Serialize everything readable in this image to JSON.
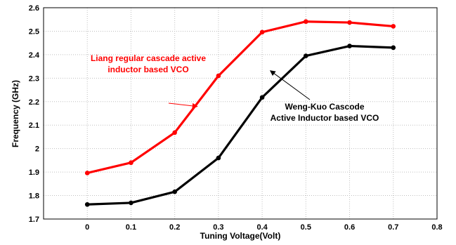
{
  "chart_data": {
    "type": "line",
    "title": "",
    "xlabel": "Tuning Voltage(Volt)",
    "ylabel": "Frequency (GHz)",
    "xlim": [
      -0.1,
      0.8
    ],
    "ylim": [
      1.7,
      2.6
    ],
    "xticks": [
      "0",
      "0.1",
      "0.2",
      "0.3",
      "0.4",
      "0.5",
      "0.6",
      "0.7",
      "0.8"
    ],
    "yticks": [
      "1.7",
      "1.8",
      "1.9",
      "2",
      "2.1",
      "2.2",
      "2.3",
      "2.4",
      "2.5",
      "2.6"
    ],
    "grid": true,
    "x": [
      0,
      0.1,
      0.2,
      0.3,
      0.4,
      0.5,
      0.6,
      0.7
    ],
    "series": [
      {
        "values": [
          1.896,
          1.94,
          2.068,
          2.31,
          2.496,
          2.541,
          2.537,
          2.521
        ],
        "color": "#ff0000"
      },
      {
        "values": [
          1.762,
          1.769,
          1.816,
          1.96,
          2.218,
          2.395,
          2.437,
          2.43
        ],
        "color": "#000000"
      }
    ],
    "annotations": [
      {
        "lines": [
          "Liang regular cascade active",
          "inductor based VCO"
        ],
        "color": "#ff0000",
        "arrow_to": [
          0.25,
          2.18
        ]
      },
      {
        "lines": [
          "Weng-Kuo Cascode",
          "Active Inductor based VCO"
        ],
        "color": "#000000",
        "arrow_to": [
          0.42,
          2.33
        ]
      }
    ]
  }
}
